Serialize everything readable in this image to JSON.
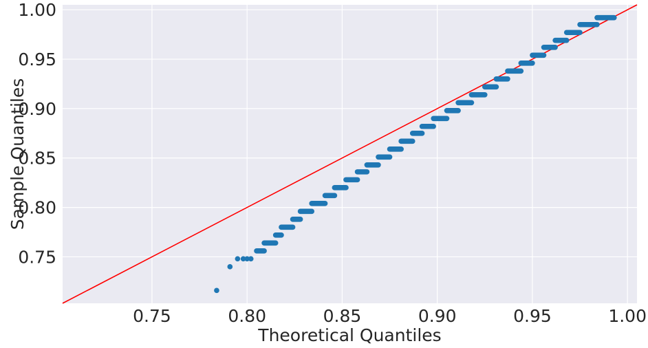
{
  "chart_data": {
    "type": "scatter",
    "title": "",
    "xlabel": "Theoretical Quantiles",
    "ylabel": "Sample Quantiles",
    "xlim": [
      0.703,
      1.005
    ],
    "ylim": [
      0.703,
      1.005
    ],
    "grid": true,
    "x_ticks": [
      0.75,
      0.8,
      0.85,
      0.9,
      0.95,
      1.0
    ],
    "x_tick_labels": [
      "0.75",
      "0.80",
      "0.85",
      "0.90",
      "0.95",
      "1.00"
    ],
    "y_ticks": [
      0.75,
      0.8,
      0.85,
      0.9,
      0.95,
      1.0
    ],
    "y_tick_labels": [
      "0.75",
      "0.80",
      "0.85",
      "0.90",
      "0.95",
      "1.00"
    ],
    "colors": {
      "points": "#1f77b4",
      "reference_line": "#ff0000",
      "background": "#eaeaf2",
      "grid": "#ffffff"
    },
    "reference_line": {
      "from": [
        0.703,
        0.703
      ],
      "to": [
        1.005,
        1.005
      ]
    },
    "points": [
      {
        "x": 0.784,
        "y": 0.716
      },
      {
        "x": 0.791,
        "y": 0.74
      },
      {
        "x": 0.795,
        "y": 0.748
      },
      {
        "x": 0.798,
        "y": 0.748
      },
      {
        "x": 0.8,
        "y": 0.748
      },
      {
        "x": 0.802,
        "y": 0.748
      }
    ],
    "steps": [
      {
        "y": 0.756,
        "x_start": 0.805,
        "x_end": 0.809
      },
      {
        "y": 0.764,
        "x_start": 0.809,
        "x_end": 0.815
      },
      {
        "y": 0.772,
        "x_start": 0.815,
        "x_end": 0.818
      },
      {
        "y": 0.78,
        "x_start": 0.818,
        "x_end": 0.824
      },
      {
        "y": 0.788,
        "x_start": 0.824,
        "x_end": 0.828
      },
      {
        "y": 0.796,
        "x_start": 0.828,
        "x_end": 0.834
      },
      {
        "y": 0.804,
        "x_start": 0.834,
        "x_end": 0.841
      },
      {
        "y": 0.812,
        "x_start": 0.841,
        "x_end": 0.846
      },
      {
        "y": 0.82,
        "x_start": 0.846,
        "x_end": 0.852
      },
      {
        "y": 0.828,
        "x_start": 0.852,
        "x_end": 0.858
      },
      {
        "y": 0.836,
        "x_start": 0.858,
        "x_end": 0.863
      },
      {
        "y": 0.843,
        "x_start": 0.863,
        "x_end": 0.869
      },
      {
        "y": 0.851,
        "x_start": 0.869,
        "x_end": 0.875
      },
      {
        "y": 0.859,
        "x_start": 0.875,
        "x_end": 0.881
      },
      {
        "y": 0.867,
        "x_start": 0.881,
        "x_end": 0.887
      },
      {
        "y": 0.875,
        "x_start": 0.887,
        "x_end": 0.892
      },
      {
        "y": 0.882,
        "x_start": 0.892,
        "x_end": 0.898
      },
      {
        "y": 0.89,
        "x_start": 0.898,
        "x_end": 0.905
      },
      {
        "y": 0.898,
        "x_start": 0.905,
        "x_end": 0.911
      },
      {
        "y": 0.906,
        "x_start": 0.911,
        "x_end": 0.918
      },
      {
        "y": 0.914,
        "x_start": 0.918,
        "x_end": 0.925
      },
      {
        "y": 0.922,
        "x_start": 0.925,
        "x_end": 0.931
      },
      {
        "y": 0.93,
        "x_start": 0.931,
        "x_end": 0.937
      },
      {
        "y": 0.938,
        "x_start": 0.937,
        "x_end": 0.944
      },
      {
        "y": 0.946,
        "x_start": 0.944,
        "x_end": 0.95
      },
      {
        "y": 0.954,
        "x_start": 0.95,
        "x_end": 0.956
      },
      {
        "y": 0.962,
        "x_start": 0.956,
        "x_end": 0.962
      },
      {
        "y": 0.969,
        "x_start": 0.962,
        "x_end": 0.968
      },
      {
        "y": 0.977,
        "x_start": 0.968,
        "x_end": 0.975
      },
      {
        "y": 0.985,
        "x_start": 0.975,
        "x_end": 0.984
      },
      {
        "y": 0.992,
        "x_start": 0.984,
        "x_end": 0.993
      }
    ]
  }
}
